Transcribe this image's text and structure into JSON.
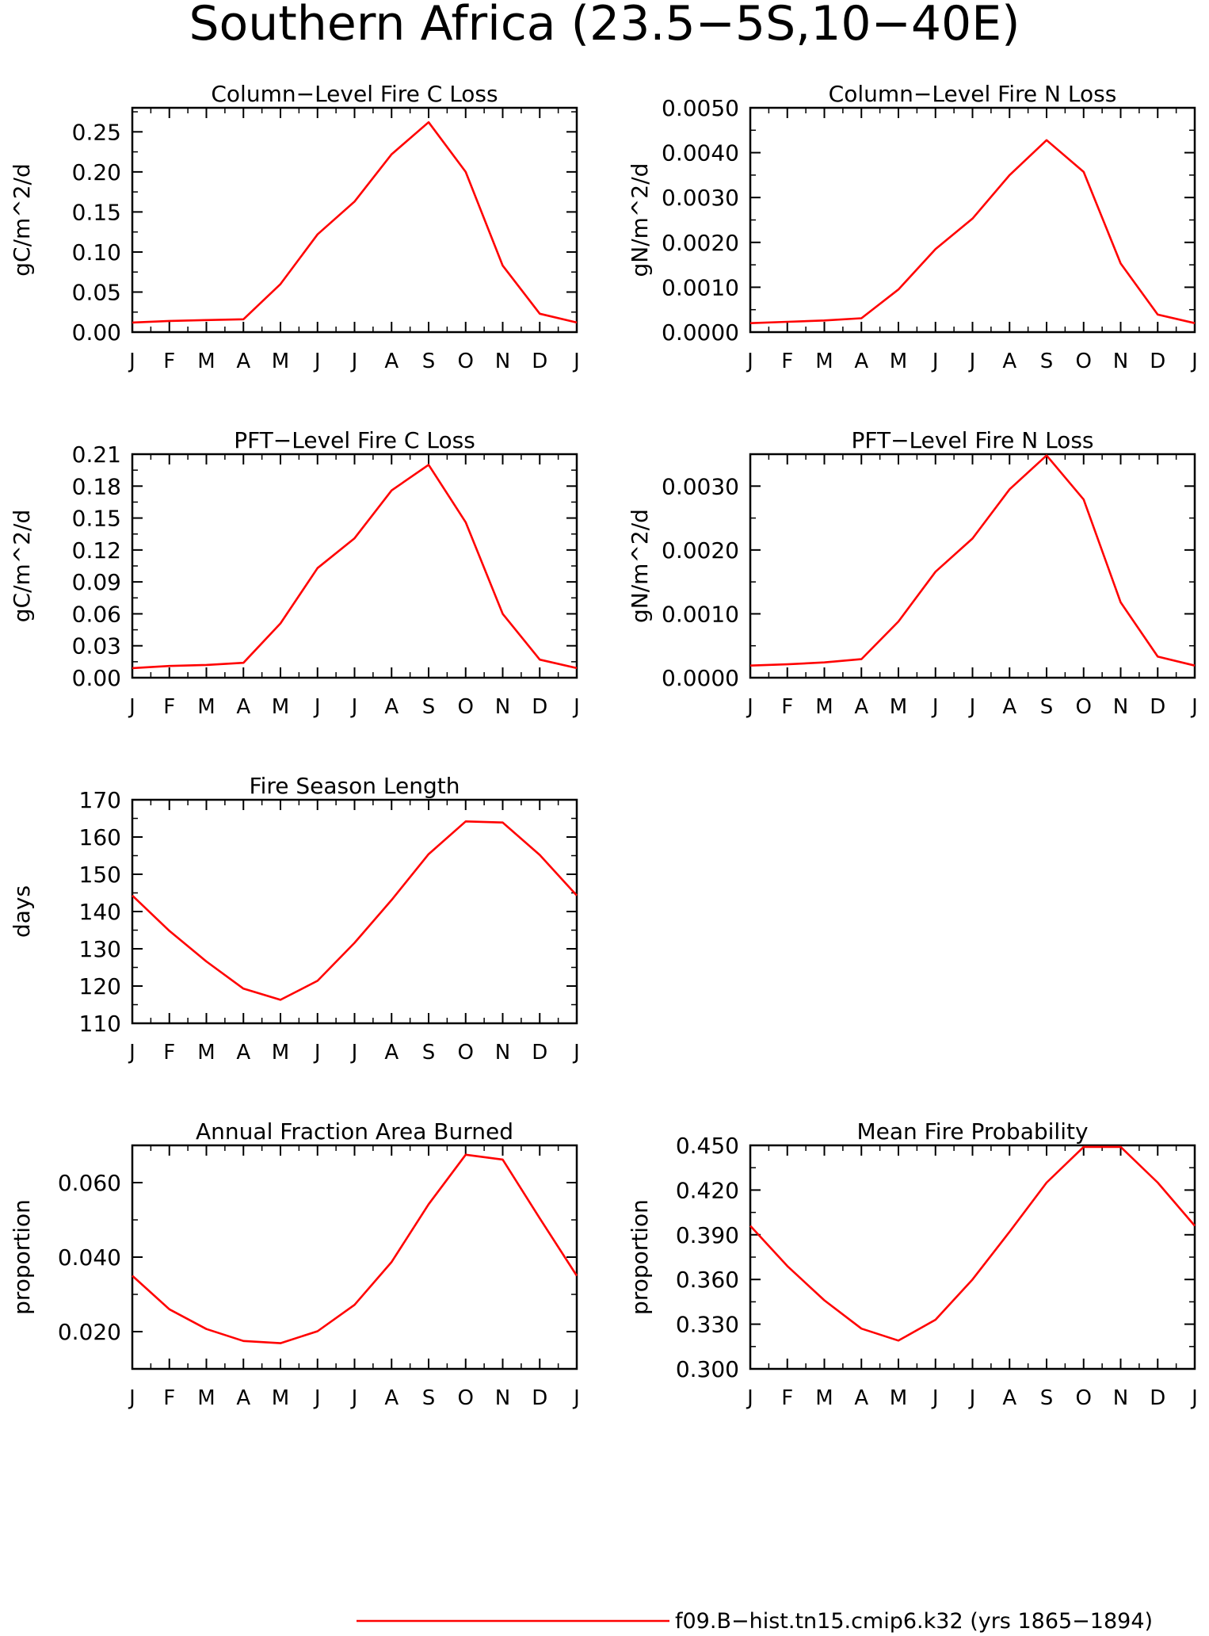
{
  "page": {
    "title": "Southern Africa (23.5−5S,10−40E)",
    "legend_label": "f09.B−hist.tn15.cmip6.k32 (yrs 1865−1894)",
    "line_color": "#ff0000"
  },
  "chart_data": [
    {
      "id": "col-c",
      "type": "line",
      "title": "Column−Level Fire C Loss",
      "xlabel": "",
      "ylabel": "gC/m^2/d",
      "categories": [
        "J",
        "F",
        "M",
        "A",
        "M",
        "J",
        "J",
        "A",
        "S",
        "O",
        "N",
        "D",
        "J"
      ],
      "ylim": [
        0,
        0.28
      ],
      "yticks": [
        "0.00",
        "0.05",
        "0.10",
        "0.15",
        "0.20",
        "0.25"
      ],
      "series": [
        {
          "name": "f09.B−hist.tn15.cmip6.k32 (yrs 1865−1894)",
          "values": [
            0.012,
            0.014,
            0.015,
            0.016,
            0.06,
            0.122,
            0.163,
            0.222,
            0.262,
            0.2,
            0.083,
            0.023,
            0.012
          ]
        }
      ]
    },
    {
      "id": "col-n",
      "type": "line",
      "title": "Column−Level Fire N Loss",
      "xlabel": "",
      "ylabel": "gN/m^2/d",
      "categories": [
        "J",
        "F",
        "M",
        "A",
        "M",
        "J",
        "J",
        "A",
        "S",
        "O",
        "N",
        "D",
        "J"
      ],
      "ylim": [
        0,
        0.005
      ],
      "yticks": [
        "0.0000",
        "0.0010",
        "0.0020",
        "0.0030",
        "0.0040",
        "0.0050"
      ],
      "series": [
        {
          "name": "f09.B−hist.tn15.cmip6.k32 (yrs 1865−1894)",
          "values": [
            0.0002,
            0.00023,
            0.00026,
            0.00031,
            0.00095,
            0.00185,
            0.00253,
            0.0035,
            0.00428,
            0.00357,
            0.00153,
            0.00039,
            0.0002
          ]
        }
      ]
    },
    {
      "id": "pft-c",
      "type": "line",
      "title": "PFT−Level Fire C Loss",
      "xlabel": "",
      "ylabel": "gC/m^2/d",
      "categories": [
        "J",
        "F",
        "M",
        "A",
        "M",
        "J",
        "J",
        "A",
        "S",
        "O",
        "N",
        "D",
        "J"
      ],
      "ylim": [
        0,
        0.21
      ],
      "yticks": [
        "0.00",
        "0.03",
        "0.06",
        "0.09",
        "0.12",
        "0.15",
        "0.18",
        "0.21"
      ],
      "series": [
        {
          "name": "f09.B−hist.tn15.cmip6.k32 (yrs 1865−1894)",
          "values": [
            0.009,
            0.011,
            0.012,
            0.014,
            0.051,
            0.103,
            0.131,
            0.176,
            0.2,
            0.146,
            0.06,
            0.017,
            0.009
          ]
        }
      ]
    },
    {
      "id": "pft-n",
      "type": "line",
      "title": "PFT−Level Fire N Loss",
      "xlabel": "",
      "ylabel": "gN/m^2/d",
      "categories": [
        "J",
        "F",
        "M",
        "A",
        "M",
        "J",
        "J",
        "A",
        "S",
        "O",
        "N",
        "D",
        "J"
      ],
      "ylim": [
        0,
        0.0035
      ],
      "yticks": [
        "0.0000",
        "0.0010",
        "0.0020",
        "0.0030"
      ],
      "series": [
        {
          "name": "f09.B−hist.tn15.cmip6.k32 (yrs 1865−1894)",
          "values": [
            0.00019,
            0.00021,
            0.00024,
            0.00029,
            0.00088,
            0.00166,
            0.00218,
            0.00295,
            0.00348,
            0.00279,
            0.00118,
            0.00033,
            0.00019
          ]
        }
      ]
    },
    {
      "id": "season",
      "type": "line",
      "title": "Fire Season Length",
      "xlabel": "",
      "ylabel": "days",
      "categories": [
        "J",
        "F",
        "M",
        "A",
        "M",
        "J",
        "J",
        "A",
        "S",
        "O",
        "N",
        "D",
        "J"
      ],
      "ylim": [
        110,
        170
      ],
      "yticks": [
        "110",
        "120",
        "130",
        "140",
        "150",
        "160",
        "170"
      ],
      "series": [
        {
          "name": "f09.B−hist.tn15.cmip6.k32 (yrs 1865−1894)",
          "values": [
            144.3,
            134.8,
            126.6,
            119.3,
            116.3,
            121.4,
            131.6,
            143.1,
            155.4,
            164.2,
            163.9,
            155.2,
            144.3
          ]
        }
      ]
    },
    {
      "id": "frac",
      "type": "line",
      "title": "Annual Fraction Area Burned",
      "xlabel": "",
      "ylabel": "proportion",
      "categories": [
        "J",
        "F",
        "M",
        "A",
        "M",
        "J",
        "J",
        "A",
        "S",
        "O",
        "N",
        "D",
        "J"
      ],
      "ylim": [
        0.01,
        0.07
      ],
      "yticks": [
        "0.020",
        "0.040",
        "0.060"
      ],
      "series": [
        {
          "name": "f09.B−hist.tn15.cmip6.k32 (yrs 1865−1894)",
          "values": [
            0.035,
            0.026,
            0.0207,
            0.0175,
            0.0169,
            0.0201,
            0.0272,
            0.0387,
            0.0542,
            0.0675,
            0.0662,
            0.0504,
            0.035
          ]
        }
      ]
    },
    {
      "id": "prob",
      "type": "line",
      "title": "Mean Fire Probability",
      "xlabel": "",
      "ylabel": "proportion",
      "categories": [
        "J",
        "F",
        "M",
        "A",
        "M",
        "J",
        "J",
        "A",
        "S",
        "O",
        "N",
        "D",
        "J"
      ],
      "ylim": [
        0.3,
        0.45
      ],
      "yticks": [
        "0.300",
        "0.330",
        "0.360",
        "0.390",
        "0.420",
        "0.450"
      ],
      "series": [
        {
          "name": "f09.B−hist.tn15.cmip6.k32 (yrs 1865−1894)",
          "values": [
            0.396,
            0.369,
            0.346,
            0.327,
            0.319,
            0.333,
            0.36,
            0.392,
            0.425,
            0.449,
            0.449,
            0.425,
            0.396
          ]
        }
      ]
    }
  ]
}
